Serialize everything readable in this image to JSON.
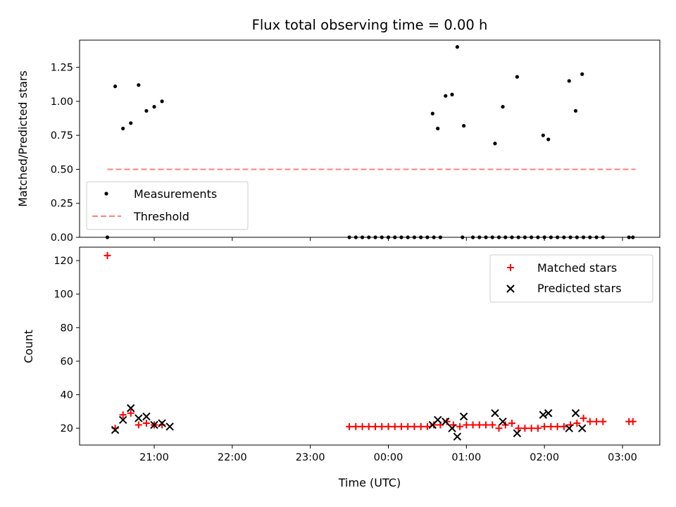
{
  "figure": {
    "title": "Flux total observing time = 0.00 h",
    "xlabel": "Time (UTC)",
    "x_ticks": [
      "21:00",
      "22:00",
      "23:00",
      "00:00",
      "01:00",
      "02:00",
      "03:00"
    ]
  },
  "chart_data": [
    {
      "type": "scatter",
      "ylabel": "Matched/Predicted stars",
      "ylim": [
        0,
        1.45
      ],
      "y_ticks": [
        "0.00",
        "0.25",
        "0.50",
        "0.75",
        "1.00",
        "1.25"
      ],
      "legend": {
        "placement": "lower-left",
        "entries": [
          "Measurements",
          "Threshold"
        ]
      },
      "series": [
        {
          "name": "Measurements",
          "marker": "dot",
          "color": "#000000",
          "x": [
            "20:24",
            "20:30",
            "20:36",
            "20:42",
            "20:48",
            "20:54",
            "21:00",
            "21:06",
            "23:30",
            "23:35",
            "23:40",
            "23:45",
            "23:50",
            "23:55",
            "00:00",
            "00:05",
            "00:10",
            "00:15",
            "00:20",
            "00:25",
            "00:30",
            "00:35",
            "00:40",
            "00:34",
            "00:38",
            "00:44",
            "00:49",
            "00:53",
            "00:57",
            "01:05",
            "01:10",
            "01:15",
            "01:20",
            "01:25",
            "01:30",
            "01:35",
            "01:40",
            "01:45",
            "01:50",
            "01:55",
            "02:00",
            "02:05",
            "02:10",
            "02:15",
            "02:20",
            "02:25",
            "02:30",
            "02:35",
            "02:40",
            "02:45",
            "03:05",
            "03:08",
            "00:58",
            "01:22",
            "01:28",
            "01:39",
            "01:59",
            "02:03",
            "02:19",
            "02:24",
            "02:29"
          ],
          "y": [
            0,
            1.11,
            0.8,
            0.84,
            1.12,
            0.93,
            0.96,
            1.0,
            0,
            0,
            0,
            0,
            0,
            0,
            0,
            0,
            0,
            0,
            0,
            0,
            0,
            0,
            0,
            0.91,
            0.8,
            1.04,
            1.05,
            1.4,
            0,
            0,
            0,
            0,
            0,
            0,
            0,
            0,
            0,
            0,
            0,
            0,
            0,
            0,
            0,
            0,
            0,
            0,
            0,
            0,
            0,
            0,
            0,
            0,
            0.82,
            0.69,
            0.96,
            1.18,
            0.75,
            0.72,
            1.15,
            0.93,
            1.2
          ]
        },
        {
          "name": "Threshold",
          "marker": "dashed-line",
          "color": "#ff7f7f",
          "x": [
            "20:24",
            "03:10"
          ],
          "y": [
            0.5,
            0.5
          ]
        }
      ]
    },
    {
      "type": "scatter",
      "ylabel": "Count",
      "ylim": [
        10,
        128
      ],
      "y_ticks": [
        "20",
        "40",
        "60",
        "80",
        "100",
        "120"
      ],
      "legend": {
        "placement": "top-right",
        "entries": [
          "Matched stars",
          "Predicted stars"
        ]
      },
      "series": [
        {
          "name": "Matched stars",
          "marker": "plus",
          "color": "#ff0000",
          "x": [
            "20:24",
            "20:30",
            "20:36",
            "20:42",
            "20:48",
            "20:54",
            "21:00",
            "21:06",
            "23:30",
            "23:35",
            "23:40",
            "23:45",
            "23:50",
            "23:55",
            "00:00",
            "00:05",
            "00:10",
            "00:15",
            "00:20",
            "00:25",
            "00:30",
            "00:35",
            "00:40",
            "00:45",
            "00:50",
            "00:55",
            "01:00",
            "01:05",
            "01:10",
            "01:15",
            "01:20",
            "01:25",
            "01:30",
            "01:35",
            "01:40",
            "01:45",
            "01:50",
            "01:55",
            "02:00",
            "02:05",
            "02:10",
            "02:15",
            "02:20",
            "02:25",
            "02:30",
            "02:35",
            "02:40",
            "02:45",
            "03:05",
            "03:08"
          ],
          "y": [
            123,
            20,
            28,
            29,
            22,
            23,
            22,
            22,
            21,
            21,
            21,
            21,
            21,
            21,
            21,
            21,
            21,
            21,
            21,
            21,
            21,
            22,
            22,
            24,
            22,
            21,
            22,
            22,
            22,
            22,
            22,
            20,
            22,
            23,
            20,
            20,
            20,
            20,
            21,
            21,
            21,
            21,
            22,
            23,
            26,
            24,
            24,
            24,
            24,
            24
          ]
        },
        {
          "name": "Predicted stars",
          "marker": "x",
          "color": "#000000",
          "x": [
            "20:30",
            "20:36",
            "20:42",
            "20:48",
            "20:54",
            "21:00",
            "21:06",
            "21:12",
            "00:34",
            "00:38",
            "00:44",
            "00:49",
            "00:53",
            "00:58",
            "01:22",
            "01:28",
            "01:39",
            "01:59",
            "02:03",
            "02:19",
            "02:24",
            "02:29"
          ],
          "y": [
            19,
            25,
            32,
            26,
            27,
            22,
            23,
            21,
            22,
            25,
            24,
            20,
            15,
            27,
            29,
            24,
            17,
            28,
            29,
            20,
            29,
            20
          ]
        }
      ]
    }
  ]
}
